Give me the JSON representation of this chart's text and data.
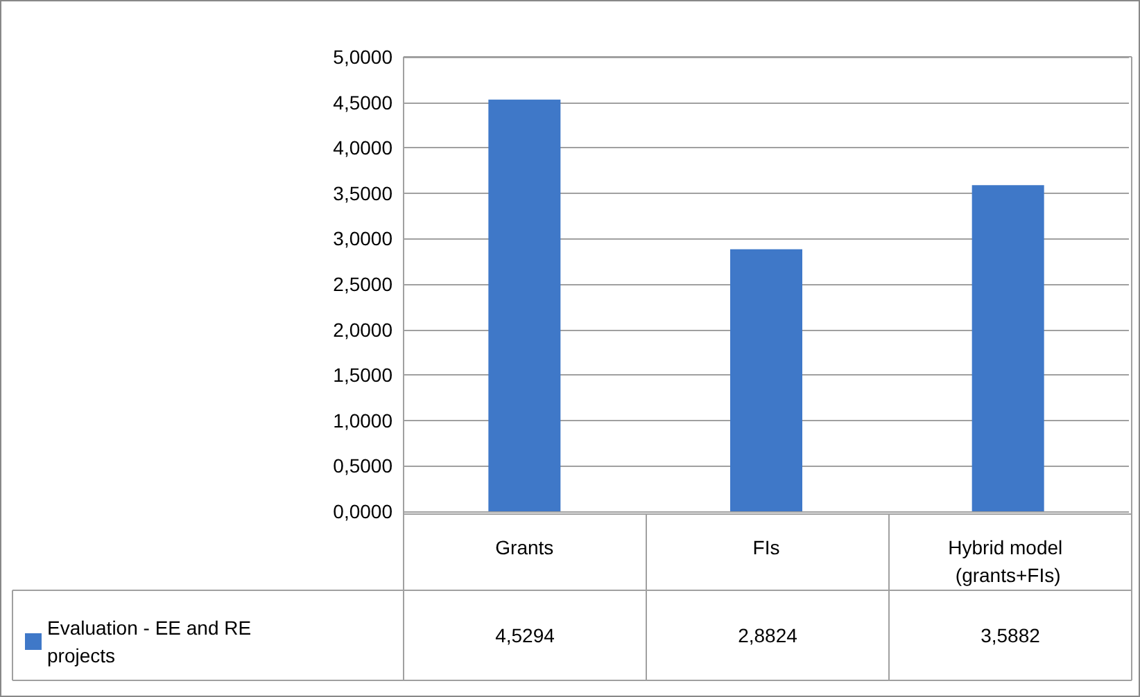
{
  "chart_data": {
    "type": "bar",
    "categories": [
      "Grants",
      "FIs",
      "Hybrid model (grants+FIs)"
    ],
    "series": [
      {
        "name": "Evaluation - EE and RE projects",
        "color": "#3f78c8",
        "values": [
          4.5294,
          2.8824,
          3.5882
        ],
        "value_labels": [
          "4,5294",
          "2,8824",
          "3,5882"
        ]
      }
    ],
    "ylim": [
      0,
      5
    ],
    "yticks": [
      {
        "value": 0,
        "label": "0,0000"
      },
      {
        "value": 0.5,
        "label": "0,5000"
      },
      {
        "value": 1,
        "label": "1,0000"
      },
      {
        "value": 1.5,
        "label": "1,5000"
      },
      {
        "value": 2,
        "label": "2,0000"
      },
      {
        "value": 2.5,
        "label": "2,5000"
      },
      {
        "value": 3,
        "label": "3,0000"
      },
      {
        "value": 3.5,
        "label": "3,5000"
      },
      {
        "value": 4,
        "label": "4,0000"
      },
      {
        "value": 4.5,
        "label": "4,5000"
      },
      {
        "value": 5,
        "label": "5,0000"
      }
    ],
    "grid": "y",
    "legend": "bottom left"
  }
}
